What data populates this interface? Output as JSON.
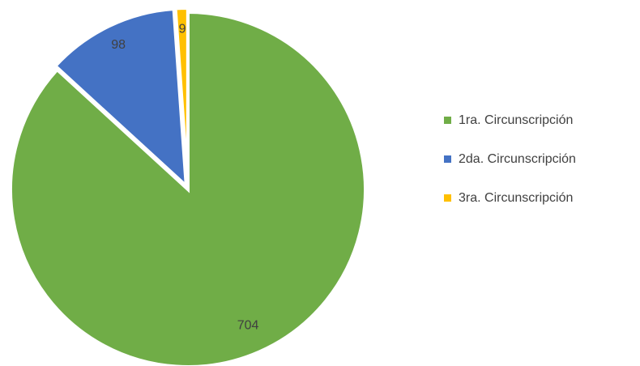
{
  "chart_data": {
    "type": "pie",
    "categories": [
      "1ra. Circunscripción",
      "2da. Circunscripción",
      "3ra. Circunscripción"
    ],
    "values": [
      704,
      98,
      9
    ],
    "colors": [
      "#70ad47",
      "#4472c4",
      "#ffc000"
    ],
    "legend": "right"
  }
}
